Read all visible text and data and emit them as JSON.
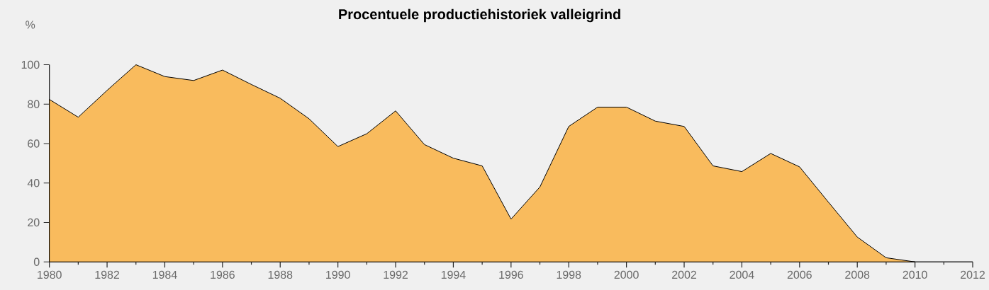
{
  "chart_data": {
    "type": "area",
    "title": "Procentuele productiehistoriek valleigrind",
    "ylabel": "%",
    "x": [
      1980,
      1981,
      1982,
      1983,
      1984,
      1985,
      1986,
      1987,
      1988,
      1989,
      1990,
      1991,
      1992,
      1993,
      1994,
      1995,
      1996,
      1997,
      1998,
      1999,
      2000,
      2001,
      2002,
      2003,
      2004,
      2005,
      2006,
      2007,
      2008,
      2009,
      2010
    ],
    "values": [
      82.4,
      73.4,
      87,
      100,
      94,
      92,
      97.3,
      90,
      83,
      72.6,
      58.5,
      65,
      76.6,
      59.5,
      52.6,
      48.7,
      21.7,
      38,
      68.7,
      78.5,
      78.5,
      71.4,
      68.7,
      48.7,
      45.8,
      55,
      48.2,
      30.3,
      12.6,
      2.1,
      0
    ],
    "color": "#f9bb5d",
    "xlim": [
      1980,
      2012
    ],
    "ylim": [
      0,
      100
    ],
    "xticks": [
      1980,
      {
        "value": 1981,
        "label": null
      },
      1982,
      {
        "value": 1983,
        "label": null
      },
      1984,
      {
        "value": 1985,
        "label": null
      },
      1986,
      {
        "value": 1987,
        "label": null
      },
      1988,
      {
        "value": 1989,
        "label": null
      },
      1990,
      {
        "value": 1991,
        "label": null
      },
      1992,
      {
        "value": 1993,
        "label": null
      },
      1994,
      {
        "value": 1995,
        "label": null
      },
      1996,
      {
        "value": 1997,
        "label": null
      },
      1998,
      {
        "value": 1999,
        "label": null
      },
      2000,
      {
        "value": 2001,
        "label": null
      },
      2002,
      {
        "value": 2003,
        "label": null
      },
      2004,
      {
        "value": 2005,
        "label": null
      },
      2006,
      {
        "value": 2007,
        "label": null
      },
      2008,
      {
        "value": 2009,
        "label": null
      },
      2010,
      {
        "value": 2011,
        "label": null
      },
      2012
    ],
    "yticks": [
      0,
      20,
      40,
      60,
      80,
      100
    ]
  }
}
